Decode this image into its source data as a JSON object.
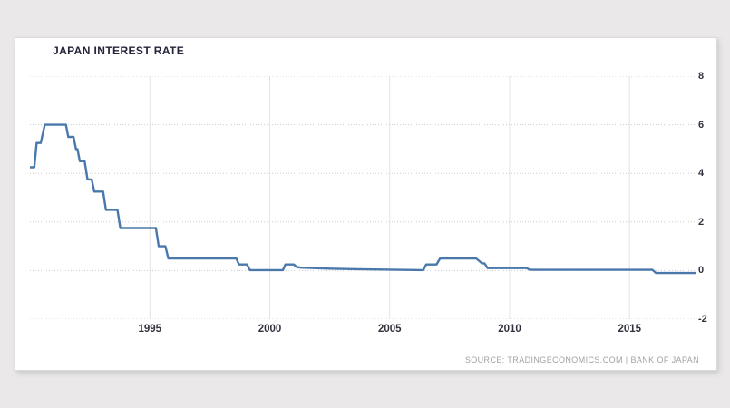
{
  "page": {
    "background_color": "#eae8e8",
    "card_color": "#ffffff"
  },
  "header": {
    "title": "JAPAN INTEREST RATE"
  },
  "footer": {
    "source_text": "SOURCE: TRADINGECONOMICS.COM | BANK OF JAPAN"
  },
  "chart_data": {
    "type": "line",
    "title": "JAPAN INTEREST RATE",
    "xlabel": "",
    "ylabel": "",
    "x_range": [
      1990,
      2017.75
    ],
    "y_range": [
      -2,
      8
    ],
    "x_ticks": [
      1995,
      2000,
      2005,
      2010,
      2015
    ],
    "y_ticks": [
      8,
      6,
      4,
      2,
      0,
      -2
    ],
    "grid": true,
    "legend": false,
    "line_color": "#4a78ab",
    "h_grid_color": "#cdcdcd",
    "v_grid_color": "#e4e4e4",
    "source": "SOURCE: TRADINGECONOMICS.COM | BANK OF JAPAN",
    "series": [
      {
        "name": "Japan Interest Rate (%)",
        "points": [
          [
            1990.0,
            4.25
          ],
          [
            1990.18,
            4.25
          ],
          [
            1990.28,
            5.25
          ],
          [
            1990.45,
            5.25
          ],
          [
            1990.62,
            6.0
          ],
          [
            1991.5,
            6.0
          ],
          [
            1991.6,
            5.5
          ],
          [
            1991.82,
            5.5
          ],
          [
            1991.92,
            5.0
          ],
          [
            1991.98,
            5.0
          ],
          [
            1992.08,
            4.5
          ],
          [
            1992.28,
            4.5
          ],
          [
            1992.4,
            3.75
          ],
          [
            1992.58,
            3.75
          ],
          [
            1992.68,
            3.25
          ],
          [
            1993.05,
            3.25
          ],
          [
            1993.17,
            2.5
          ],
          [
            1993.65,
            2.5
          ],
          [
            1993.77,
            1.75
          ],
          [
            1995.25,
            1.75
          ],
          [
            1995.37,
            1.0
          ],
          [
            1995.65,
            1.0
          ],
          [
            1995.77,
            0.5
          ],
          [
            1998.6,
            0.5
          ],
          [
            1998.72,
            0.25
          ],
          [
            1999.05,
            0.25
          ],
          [
            1999.17,
            0.02
          ],
          [
            2000.55,
            0.02
          ],
          [
            2000.65,
            0.25
          ],
          [
            2001.0,
            0.25
          ],
          [
            2001.12,
            0.15
          ],
          [
            2001.3,
            0.12
          ],
          [
            2002.5,
            0.08
          ],
          [
            2004.0,
            0.05
          ],
          [
            2006.4,
            0.02
          ],
          [
            2006.52,
            0.25
          ],
          [
            2006.95,
            0.25
          ],
          [
            2007.1,
            0.5
          ],
          [
            2008.6,
            0.5
          ],
          [
            2008.85,
            0.3
          ],
          [
            2008.95,
            0.3
          ],
          [
            2009.08,
            0.1
          ],
          [
            2010.7,
            0.1
          ],
          [
            2010.85,
            0.03
          ],
          [
            2015.95,
            0.03
          ],
          [
            2016.1,
            -0.1
          ],
          [
            2017.75,
            -0.1
          ]
        ]
      }
    ]
  }
}
